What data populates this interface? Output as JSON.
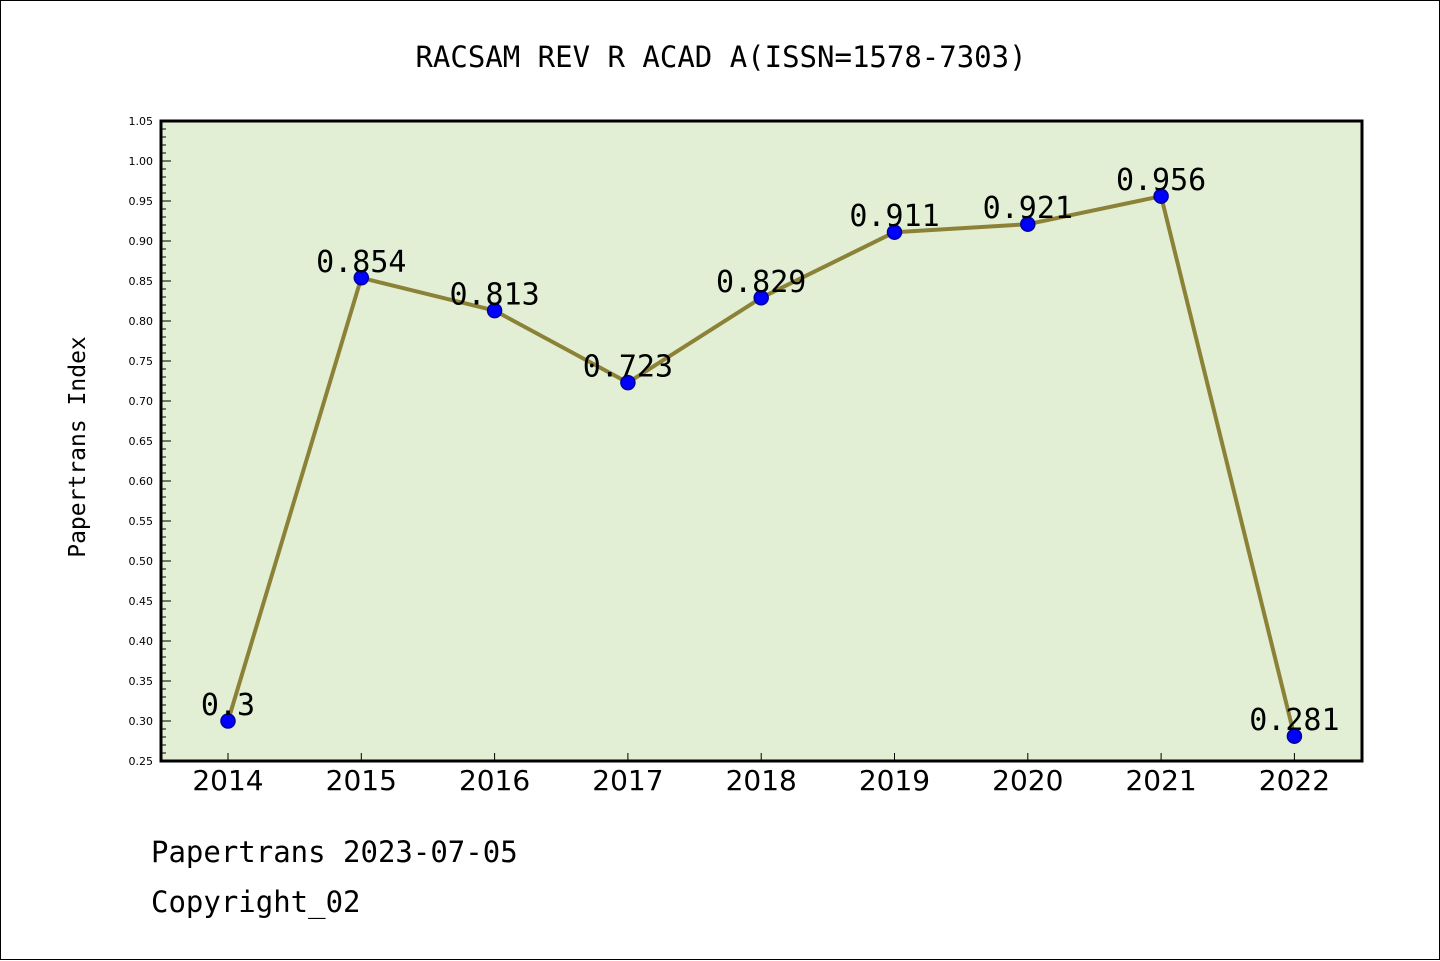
{
  "colors": {
    "plot_background": "#e2efd5",
    "line": "#8c8237",
    "marker": "#0000ff",
    "marker_edge": "#00009a"
  },
  "chart_data": {
    "type": "line",
    "title": "RACSAM REV R ACAD A(ISSN=1578-7303)",
    "xlabel": "",
    "ylabel": "Papertrans Index",
    "categories": [
      "2014",
      "2015",
      "2016",
      "2017",
      "2018",
      "2019",
      "2020",
      "2021",
      "2022"
    ],
    "series": [
      {
        "values": [
          0.3,
          0.854,
          0.813,
          0.723,
          0.829,
          0.911,
          0.921,
          0.956,
          0.281
        ],
        "labels": [
          "0.3",
          "0.854",
          "0.813",
          "0.723",
          "0.829",
          "0.911",
          "0.921",
          "0.956",
          "0.281"
        ]
      }
    ],
    "ylim": [
      0.25,
      1.05
    ],
    "yticks": [
      "0.25",
      "0.30",
      "0.35",
      "0.40",
      "0.45",
      "0.50",
      "0.55",
      "0.60",
      "0.65",
      "0.70",
      "0.75",
      "0.80",
      "0.85",
      "0.90",
      "0.95",
      "1.00",
      "1.05"
    ],
    "grid": false,
    "legend": "none"
  },
  "footer": {
    "line1": "Papertrans 2023-07-05",
    "line2": "Copyright_02"
  }
}
